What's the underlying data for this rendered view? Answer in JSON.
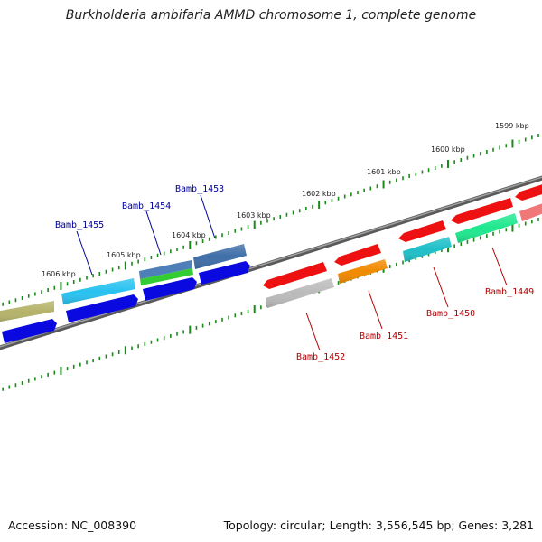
{
  "title": "Burkholderia ambifaria AMMD chromosome 1, complete genome",
  "accession": "Accession: NC_008390",
  "topology": "Topology: circular; Length: 3,556,545 bp; Genes: 3,281",
  "colors": {
    "tick": "#1a8a1a",
    "backbone": "#7a7a7a",
    "label_top": "#000099",
    "label_bottom": "#b30000"
  },
  "position_labels": [
    {
      "text": "1599 kbp"
    },
    {
      "text": "1600 kbp"
    },
    {
      "text": "1601 kbp"
    },
    {
      "text": "1602 kbp"
    },
    {
      "text": "1603 kbp"
    },
    {
      "text": "1604 kbp"
    },
    {
      "text": "1605 kbp"
    },
    {
      "text": "1606 kbp"
    }
  ],
  "gene_labels": [
    {
      "text": "Bamb_1455",
      "side": "top"
    },
    {
      "text": "Bamb_1454",
      "side": "top"
    },
    {
      "text": "Bamb_1453",
      "side": "top"
    },
    {
      "text": "Bamb_1452",
      "side": "bottom"
    },
    {
      "text": "Bamb_1451",
      "side": "bottom"
    },
    {
      "text": "Bamb_1450",
      "side": "bottom"
    },
    {
      "text": "Bamb_1449",
      "side": "bottom"
    }
  ]
}
